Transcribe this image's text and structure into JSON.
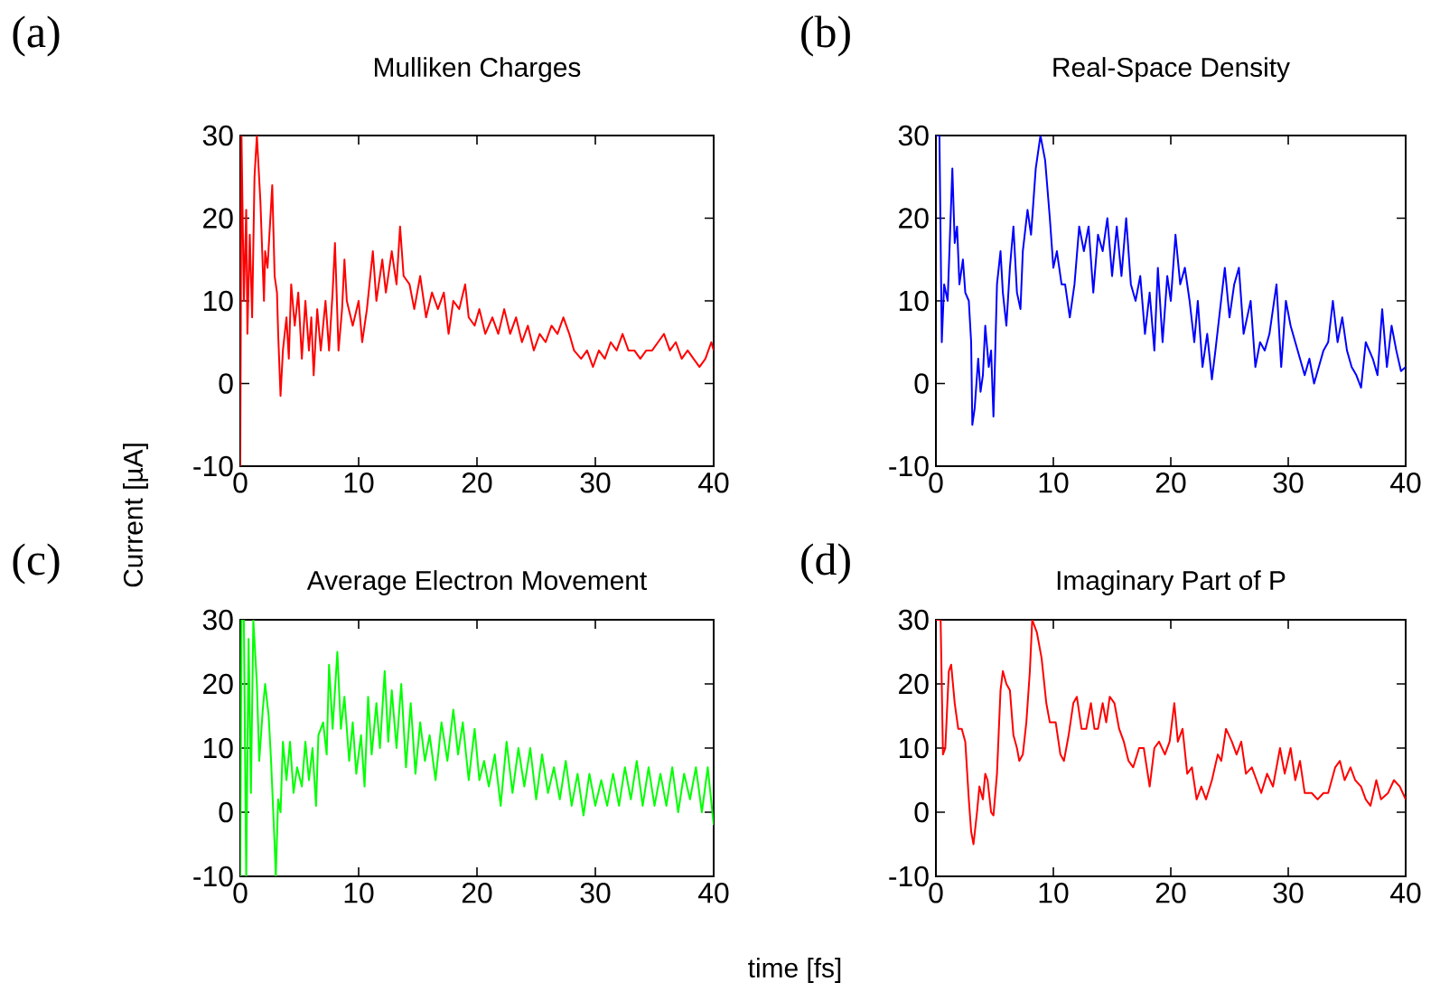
{
  "chart_data": [
    {
      "type": "line",
      "title": "Mulliken Charges",
      "annotations": [
        "(a)"
      ],
      "color": "#ff0000",
      "xlim": [
        0,
        40
      ],
      "ylim": [
        -10,
        30
      ],
      "xticks": [
        0,
        10,
        20,
        30,
        40
      ],
      "yticks": [
        -10,
        0,
        10,
        20,
        30
      ],
      "x": [
        0,
        0.1,
        0.3,
        0.5,
        0.6,
        0.8,
        1.0,
        1.2,
        1.4,
        1.7,
        2.0,
        2.1,
        2.3,
        2.7,
        2.9,
        3.1,
        3.2,
        3.4,
        3.6,
        3.9,
        4.1,
        4.3,
        4.6,
        4.9,
        5.2,
        5.5,
        5.8,
        6.0,
        6.2,
        6.5,
        6.8,
        7.2,
        7.5,
        7.8,
        8.0,
        8.3,
        8.6,
        8.8,
        9.0,
        9.5,
        10.0,
        10.3,
        10.7,
        11.2,
        11.5,
        12.0,
        12.3,
        12.8,
        13.2,
        13.5,
        13.8,
        14.3,
        14.7,
        15.2,
        15.7,
        16.2,
        16.7,
        17.2,
        17.6,
        18.0,
        18.5,
        19.0,
        19.3,
        19.8,
        20.2,
        20.7,
        21.3,
        21.8,
        22.3,
        22.8,
        23.3,
        23.8,
        24.3,
        24.8,
        25.3,
        25.8,
        26.3,
        26.8,
        27.3,
        27.8,
        28.2,
        28.8,
        29.3,
        29.8,
        30.3,
        30.8,
        31.3,
        31.8,
        32.3,
        32.8,
        33.3,
        33.8,
        34.3,
        34.8,
        35.3,
        35.8,
        36.3,
        36.8,
        37.3,
        37.8,
        38.3,
        38.8,
        39.3,
        39.8,
        40
      ],
      "values": [
        -10,
        30,
        10,
        21,
        6,
        18,
        8,
        25,
        30,
        22,
        10,
        16,
        14,
        24,
        13,
        11,
        6,
        -1.5,
        4,
        8,
        3,
        12,
        7,
        11,
        3,
        10,
        4,
        8,
        1,
        9,
        4,
        10,
        4,
        11,
        17,
        4,
        9,
        15,
        10,
        7,
        10,
        5,
        9,
        16,
        10,
        15,
        11,
        16,
        12,
        19,
        13,
        12,
        9,
        13,
        8,
        11,
        9,
        11,
        6,
        10,
        9,
        12,
        8,
        7,
        9,
        6,
        8,
        6,
        9,
        6,
        8,
        5,
        7,
        4,
        6,
        5,
        7,
        6,
        8,
        6,
        4,
        3,
        4,
        2,
        4,
        3,
        5,
        4,
        6,
        4,
        4,
        3,
        4,
        4,
        5,
        6,
        4,
        5,
        3,
        4,
        3,
        2,
        3,
        5,
        4
      ]
    },
    {
      "type": "line",
      "title": "Real-Space Density",
      "annotations": [
        "(b)"
      ],
      "color": "#0000ff",
      "xlim": [
        0,
        40
      ],
      "ylim": [
        -10,
        30
      ],
      "xticks": [
        0,
        10,
        20,
        30,
        40
      ],
      "yticks": [
        -10,
        0,
        10,
        20,
        30
      ],
      "x": [
        0,
        0.3,
        0.5,
        0.7,
        1.0,
        1.4,
        1.6,
        1.8,
        2.0,
        2.3,
        2.5,
        2.8,
        3.0,
        3.1,
        3.3,
        3.6,
        3.8,
        4.0,
        4.2,
        4.5,
        4.7,
        4.9,
        5.0,
        5.2,
        5.5,
        5.7,
        6.0,
        6.3,
        6.6,
        6.9,
        7.2,
        7.4,
        7.8,
        8.1,
        8.5,
        8.9,
        9.3,
        9.7,
        10.0,
        10.3,
        10.7,
        11.0,
        11.4,
        11.8,
        12.2,
        12.6,
        13.0,
        13.4,
        13.8,
        14.2,
        14.6,
        15.0,
        15.4,
        15.8,
        16.2,
        16.6,
        17.0,
        17.4,
        17.8,
        18.2,
        18.6,
        18.9,
        19.3,
        19.7,
        20.0,
        20.4,
        20.8,
        21.2,
        21.6,
        22.0,
        22.3,
        22.7,
        23.1,
        23.5,
        23.8,
        24.2,
        24.6,
        25.0,
        25.4,
        25.8,
        26.2,
        26.8,
        27.2,
        27.6,
        28.0,
        28.4,
        29.0,
        29.4,
        29.8,
        30.2,
        30.6,
        31.0,
        31.4,
        31.8,
        32.2,
        32.6,
        33.0,
        33.4,
        33.8,
        34.2,
        34.6,
        35.0,
        35.4,
        35.8,
        36.2,
        36.6,
        37.2,
        37.6,
        38.0,
        38.4,
        38.8,
        39.2,
        39.6,
        40
      ],
      "values": [
        30,
        30,
        5,
        12,
        10,
        26,
        17,
        19,
        12,
        15,
        11,
        10,
        5,
        -5,
        -3,
        3,
        -1,
        1,
        7,
        2,
        4,
        -4,
        1,
        12,
        16,
        11,
        7,
        14,
        19,
        11,
        9,
        16,
        21,
        18,
        26,
        30,
        27,
        20,
        14,
        16,
        12,
        12,
        8,
        12,
        19,
        16,
        19,
        11,
        18,
        16,
        20,
        13,
        19,
        13,
        20,
        12,
        10,
        13,
        6,
        11,
        4,
        14,
        5,
        13,
        10,
        18,
        12,
        14,
        10,
        5,
        10,
        2,
        6,
        0.5,
        4,
        9,
        14,
        8,
        12,
        14,
        6,
        10,
        2,
        5,
        4,
        6,
        12,
        2,
        10,
        7,
        5,
        3,
        1,
        3,
        0,
        2,
        4,
        5,
        10,
        5,
        8,
        4,
        2,
        1,
        -0.5,
        5,
        3,
        1,
        9,
        2,
        7,
        4,
        1.5,
        2
      ]
    },
    {
      "type": "line",
      "title": "Average Electron Movement",
      "annotations": [
        "(c)"
      ],
      "ylabel": "Current [µA]",
      "color": "#00ff00",
      "xlim": [
        0,
        40
      ],
      "ylim": [
        -10,
        30
      ],
      "xticks": [
        0,
        10,
        20,
        30,
        40
      ],
      "yticks": [
        -10,
        0,
        10,
        20,
        30
      ],
      "x": [
        0,
        0.1,
        0.3,
        0.5,
        0.7,
        0.9,
        1.1,
        1.4,
        1.6,
        1.9,
        2.1,
        2.4,
        2.6,
        2.9,
        3.0,
        3.2,
        3.4,
        3.6,
        3.9,
        4.2,
        4.5,
        4.8,
        5.2,
        5.5,
        5.8,
        6.1,
        6.4,
        6.6,
        7.0,
        7.3,
        7.5,
        7.8,
        8.2,
        8.5,
        8.8,
        9.2,
        9.5,
        9.8,
        10.2,
        10.5,
        10.8,
        11.1,
        11.5,
        11.8,
        12.2,
        12.5,
        12.8,
        13.2,
        13.6,
        14.0,
        14.4,
        14.8,
        15.2,
        15.6,
        16.0,
        16.5,
        17.0,
        17.5,
        18.0,
        18.4,
        18.8,
        19.3,
        19.8,
        20.2,
        20.6,
        21.0,
        21.5,
        22.0,
        22.5,
        23.0,
        23.5,
        24.0,
        24.5,
        25.0,
        25.5,
        26.0,
        26.5,
        27.0,
        27.5,
        28.0,
        28.5,
        29.0,
        29.5,
        30.0,
        30.5,
        31.0,
        31.5,
        32.0,
        32.5,
        33.0,
        33.5,
        34.0,
        34.5,
        35.0,
        35.5,
        36.0,
        36.5,
        37.0,
        37.5,
        38.0,
        38.5,
        39.0,
        39.5,
        40
      ],
      "values": [
        -10,
        30,
        30,
        -10,
        27,
        3,
        30,
        20,
        8,
        16,
        20,
        15,
        8,
        -5,
        -10,
        2,
        0,
        11,
        5,
        11,
        3,
        7,
        4,
        11,
        5,
        10,
        1,
        12,
        14,
        9,
        23,
        13,
        25,
        13,
        18,
        8,
        14,
        6,
        12,
        4,
        18,
        9,
        17,
        10,
        22,
        11,
        19,
        10,
        20,
        7,
        17,
        6,
        14,
        8,
        12,
        5,
        14,
        8,
        16,
        9,
        14,
        5,
        13,
        5,
        8,
        4,
        9,
        1,
        11,
        3,
        10,
        4,
        10,
        2,
        9,
        3,
        7,
        2,
        8,
        1,
        6,
        -0.5,
        6,
        1,
        5,
        1,
        6,
        1,
        7,
        2,
        8,
        1,
        7,
        1,
        6,
        1,
        7,
        0,
        6,
        2,
        7,
        0,
        7,
        -2
      ]
    },
    {
      "type": "line",
      "title": "Imaginary Part of P",
      "annotations": [
        "(d)"
      ],
      "xlabel": "time [fs]",
      "color": "#ff0000",
      "xlim": [
        0,
        40
      ],
      "ylim": [
        -10,
        30
      ],
      "xticks": [
        0,
        10,
        20,
        30,
        40
      ],
      "yticks": [
        -10,
        0,
        10,
        20,
        30
      ],
      "x": [
        0,
        0.4,
        0.6,
        0.8,
        1.1,
        1.3,
        1.6,
        1.9,
        2.2,
        2.5,
        2.8,
        3.0,
        3.2,
        3.5,
        3.7,
        4.0,
        4.2,
        4.4,
        4.7,
        4.9,
        5.2,
        5.5,
        5.7,
        6.0,
        6.3,
        6.6,
        6.9,
        7.1,
        7.4,
        7.7,
        8.0,
        8.2,
        8.6,
        9.0,
        9.4,
        9.7,
        10.2,
        10.6,
        10.9,
        11.3,
        11.7,
        12.0,
        12.4,
        12.8,
        13.2,
        13.5,
        13.8,
        14.2,
        14.5,
        14.8,
        15.2,
        15.6,
        16.0,
        16.4,
        16.8,
        17.3,
        17.7,
        18.2,
        18.6,
        19.0,
        19.5,
        19.9,
        20.3,
        20.6,
        21.0,
        21.4,
        21.8,
        22.2,
        22.6,
        23.0,
        23.5,
        24.0,
        24.3,
        24.7,
        25.2,
        25.6,
        26.0,
        26.4,
        26.9,
        27.3,
        27.7,
        28.2,
        28.7,
        29.3,
        29.7,
        30.2,
        30.6,
        31.0,
        31.4,
        32.0,
        32.5,
        33.0,
        33.4,
        34.0,
        34.4,
        34.8,
        35.3,
        35.7,
        36.2,
        36.6,
        37.0,
        37.5,
        37.9,
        38.5,
        39.0,
        39.5,
        40
      ],
      "values": [
        30,
        30,
        9,
        10,
        22,
        23,
        17,
        13,
        13,
        11,
        2,
        -3,
        -5,
        0,
        4,
        2,
        6,
        5,
        0,
        -0.5,
        6,
        19,
        22,
        20,
        19,
        12,
        10,
        8,
        9,
        14,
        22,
        30,
        28,
        24,
        17,
        14,
        14,
        9,
        8,
        12,
        17,
        18,
        13,
        13,
        17,
        13,
        13,
        17,
        14,
        18,
        17,
        13,
        11,
        8,
        7,
        10,
        10,
        4,
        10,
        11,
        9,
        11,
        17,
        11,
        13,
        6,
        7,
        2,
        4,
        2,
        5,
        9,
        8,
        13,
        11,
        9,
        11,
        6,
        7,
        5,
        3,
        6,
        4,
        10,
        6,
        10,
        5,
        8,
        3,
        3,
        2,
        3,
        3,
        7,
        8,
        5,
        7,
        5,
        4,
        2,
        1,
        5,
        2,
        3,
        5,
        4,
        2
      ]
    }
  ]
}
